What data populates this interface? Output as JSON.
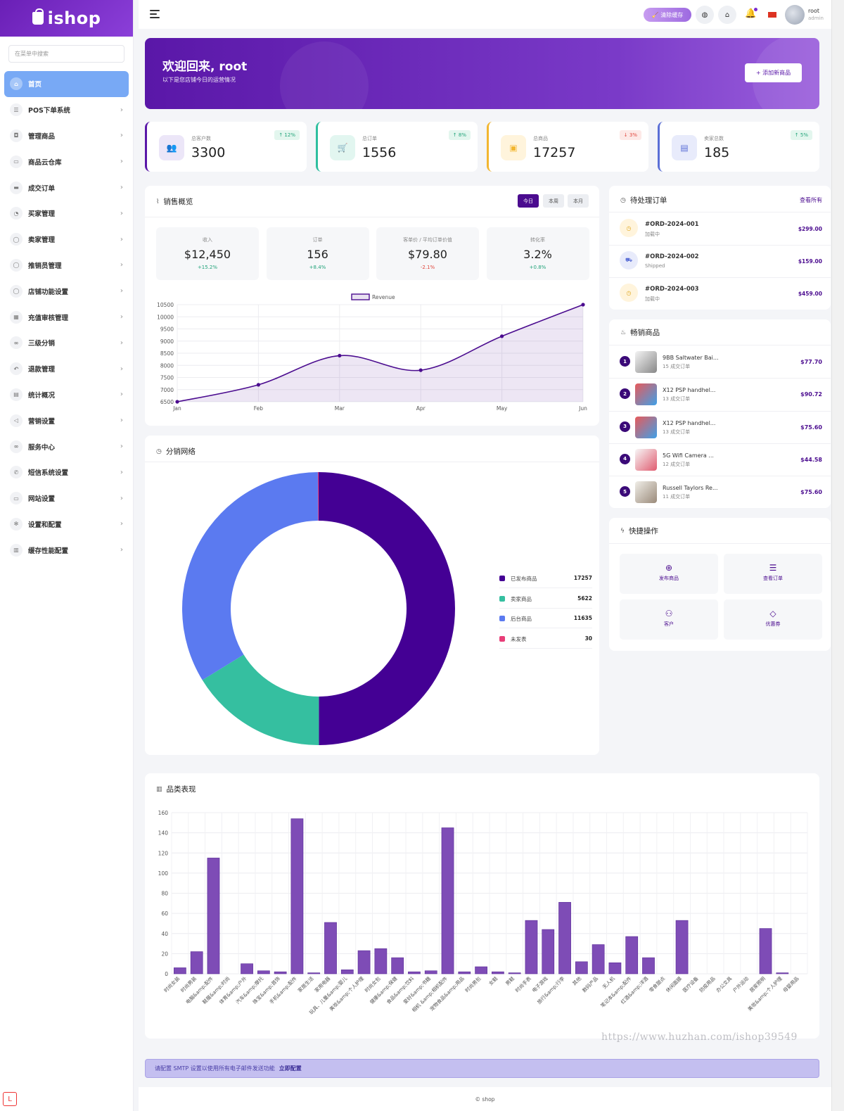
{
  "brand": {
    "name": "ishop"
  },
  "sidebar": {
    "search_placeholder": "在菜单中搜索",
    "items": [
      {
        "label": "首页",
        "icon": "home-icon"
      },
      {
        "label": "POS下单系统",
        "icon": "list-icon"
      },
      {
        "label": "管理商品",
        "icon": "bag-icon"
      },
      {
        "label": "商品云仓库",
        "icon": "box-icon"
      },
      {
        "label": "成交订单",
        "icon": "card-icon"
      },
      {
        "label": "买家管理",
        "icon": "users-icon"
      },
      {
        "label": "卖家管理",
        "icon": "user-icon"
      },
      {
        "label": "推销员管理",
        "icon": "user-icon"
      },
      {
        "label": "店铺功能设置",
        "icon": "user-icon"
      },
      {
        "label": "充值审核管理",
        "icon": "grid-icon"
      },
      {
        "label": "三级分销",
        "icon": "link-icon"
      },
      {
        "label": "退款管理",
        "icon": "undo-icon"
      },
      {
        "label": "统计概况",
        "icon": "file-icon"
      },
      {
        "label": "营销设置",
        "icon": "megaphone-icon"
      },
      {
        "label": "服务中心",
        "icon": "link-icon"
      },
      {
        "label": "短信系统设置",
        "icon": "phone-icon"
      },
      {
        "label": "网站设置",
        "icon": "monitor-icon"
      },
      {
        "label": "设置和配置",
        "icon": "gear-icon"
      },
      {
        "label": "缓存性能配置",
        "icon": "database-icon"
      }
    ]
  },
  "topbar": {
    "clear_cache": "清除缓存",
    "user_name": "root",
    "user_role": "admin"
  },
  "banner": {
    "title": "欢迎回来, root",
    "subtitle": "以下是您店铺今日的运营情况",
    "add_button": "+ 添加新商品"
  },
  "stats": [
    {
      "label": "总客户数",
      "value": "3300",
      "badge": "↑ 12%",
      "color": "#5a17a8",
      "badge_color": "#22a37a"
    },
    {
      "label": "总订单",
      "value": "1556",
      "badge": "↑ 8%",
      "color": "#2fbf9f",
      "badge_color": "#22a37a"
    },
    {
      "label": "总商品",
      "value": "17257",
      "badge": "↓ 3%",
      "color": "#f2b630",
      "badge_color": "#e0463c"
    },
    {
      "label": "卖家总数",
      "value": "185",
      "badge": "↑ 5%",
      "color": "#5b6fd6",
      "badge_color": "#22a37a"
    }
  ],
  "sales": {
    "title": "销售概览",
    "tabs": [
      "今日",
      "本周",
      "本月"
    ],
    "kpis": [
      {
        "label": "收入",
        "value": "$12,450",
        "change": "+15.2%",
        "up": true
      },
      {
        "label": "订单",
        "value": "156",
        "change": "+8.4%",
        "up": true
      },
      {
        "label": "客单价 / 平均订单价值",
        "value": "$79.80",
        "change": "-2.1%",
        "up": false
      },
      {
        "label": "转化率",
        "value": "3.2%",
        "change": "+0.8%",
        "up": true
      }
    ]
  },
  "pending": {
    "title": "待处理订单",
    "view_all": "查看所有",
    "orders": [
      {
        "id": "#ORD-2024-001",
        "status": "加载中",
        "price": "$299.00"
      },
      {
        "id": "#ORD-2024-002",
        "status": "Shipped",
        "price": "$159.00"
      },
      {
        "id": "#ORD-2024-003",
        "status": "加载中",
        "price": "$459.00"
      }
    ]
  },
  "top_products": {
    "title": "畅销商品",
    "items": [
      {
        "rank": "1",
        "name": "9BB Saltwater Bai...",
        "sales": "15 成交订单",
        "price": "$77.70"
      },
      {
        "rank": "2",
        "name": "X12 PSP handhel...",
        "sales": "13 成交订单",
        "price": "$90.72"
      },
      {
        "rank": "3",
        "name": "X12 PSP handhel...",
        "sales": "13 成交订单",
        "price": "$75.60"
      },
      {
        "rank": "4",
        "name": "5G Wifi Camera ...",
        "sales": "12 成交订单",
        "price": "$44.58"
      },
      {
        "rank": "5",
        "name": "Russell Taylors Re...",
        "sales": "11 成交订单",
        "price": "$75.60"
      }
    ]
  },
  "quick": {
    "title": "快捷操作",
    "actions": [
      {
        "label": "发布商品",
        "icon": "plus-circle-icon"
      },
      {
        "label": "查看订单",
        "icon": "list-icon"
      },
      {
        "label": "客户",
        "icon": "user-add-icon"
      },
      {
        "label": "优惠券",
        "icon": "tag-icon"
      }
    ]
  },
  "distribution": {
    "title": "分销网络",
    "legend": [
      {
        "label": "已发布商品",
        "value": "17257"
      },
      {
        "label": "卖家商品",
        "value": "5622"
      },
      {
        "label": "后台商品",
        "value": "11635"
      },
      {
        "label": "未发表",
        "value": "30"
      }
    ]
  },
  "category": {
    "title": "品类表现"
  },
  "smtp": {
    "text": "请配置 SMTP 设置以使用所有电子邮件发送功能",
    "link": "立即配置"
  },
  "footer": {
    "text": "© shop"
  },
  "watermark": "https://www.huzhan.com/ishop39549",
  "chart_data": [
    {
      "type": "line",
      "legend": "Revenue",
      "categories": [
        "Jan",
        "Feb",
        "Mar",
        "Apr",
        "May",
        "Jun"
      ],
      "values": [
        6500,
        7200,
        8400,
        7800,
        9200,
        10500
      ],
      "ylim": [
        6500,
        10500
      ],
      "yticks": [
        6500,
        7000,
        7500,
        8000,
        8500,
        9000,
        9500,
        10000,
        10500
      ],
      "color": "#4b0c8f",
      "grid": true,
      "legend_position": "top"
    },
    {
      "type": "pie",
      "donut": true,
      "labels": [
        "已发布商品",
        "卖家商品",
        "后台商品",
        "未发表"
      ],
      "values": [
        17257,
        5622,
        11635,
        30
      ],
      "colors": [
        "#440094",
        "#35bfa0",
        "#5b7af0",
        "#e83e78"
      ]
    },
    {
      "type": "bar",
      "categories": [
        "时尚女装",
        "时尚男装",
        "电脑&amp;配件",
        "鞋履&amp;时尚",
        "体育&amp;户外",
        "汽车&amp;摩托",
        "珠宝&amp;首饰",
        "手机&amp;配件",
        "家居生活",
        "家用电器",
        "玩具、儿童&amp;婴儿",
        "美妆&amp;个人护理",
        "时尚女包",
        "健康&amp;保健",
        "食品&amp;饮料",
        "爱好&amp;书籍",
        "相机 &amp;相机配件",
        "宠物食品&amp;用品",
        "时尚男包",
        "女鞋",
        "男鞋",
        "时尚手表",
        "电子游戏",
        "旅行&amp;行李",
        "其他",
        "数码产品",
        "无人机",
        "笔记本&amp;配件",
        "红酒&amp;洋酒",
        "零食甜点",
        "休闲面膜",
        "医疗设备",
        "防疫用品",
        "办公文具",
        "户外运动",
        "居家照明",
        "美妆&amp;个人护理",
        "母婴用品"
      ],
      "values": [
        6,
        22,
        115,
        0,
        10,
        3,
        2,
        154,
        1,
        51,
        4,
        23,
        25,
        16,
        2,
        3,
        145,
        2,
        7,
        2,
        1,
        53,
        44,
        71,
        12,
        29,
        11,
        37,
        16,
        0,
        53,
        0,
        0,
        0,
        0,
        45,
        1,
        0
      ],
      "ylim": [
        0,
        160
      ],
      "yticks": [
        0,
        20,
        40,
        60,
        80,
        100,
        120,
        140,
        160
      ],
      "color": "#7e4cb6",
      "grid": true
    }
  ]
}
